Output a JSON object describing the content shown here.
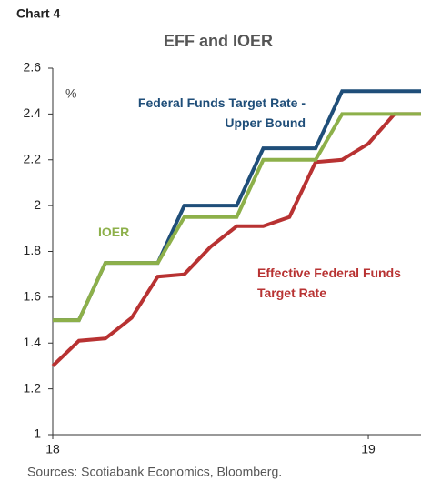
{
  "chart_data": {
    "type": "line",
    "label": "Chart 4",
    "title": "EFF and IOER",
    "y_label": "%",
    "x": [
      18,
      18.083,
      18.167,
      18.25,
      18.333,
      18.417,
      18.5,
      18.583,
      18.667,
      18.75,
      18.833,
      18.917,
      19,
      19.083,
      19.167
    ],
    "xlim": [
      18,
      19.167
    ],
    "xticks": [
      18,
      19
    ],
    "ylim": [
      1,
      2.6
    ],
    "yticks": [
      1,
      1.2,
      1.4,
      1.6,
      1.8,
      2,
      2.2,
      2.4,
      2.6
    ],
    "series": [
      {
        "name": "Federal Funds Target Rate - Upper Bound",
        "color": "#1f4e79",
        "values": [
          1.5,
          1.5,
          1.75,
          1.75,
          1.75,
          2.0,
          2.0,
          2.0,
          2.25,
          2.25,
          2.25,
          2.5,
          2.5,
          2.5,
          2.5
        ]
      },
      {
        "name": "IOER",
        "color": "#8db04a",
        "values": [
          1.5,
          1.5,
          1.75,
          1.75,
          1.75,
          1.95,
          1.95,
          1.95,
          2.2,
          2.2,
          2.2,
          2.4,
          2.4,
          2.4,
          2.4
        ]
      },
      {
        "name": "Effective Federal Funds Target Rate",
        "color": "#b83232",
        "values": [
          1.3,
          1.41,
          1.42,
          1.51,
          1.69,
          1.7,
          1.82,
          1.91,
          1.91,
          1.95,
          2.19,
          2.2,
          2.27,
          2.4,
          2.4
        ]
      }
    ],
    "source": "Sources: Scotiabank Economics, Bloomberg."
  }
}
